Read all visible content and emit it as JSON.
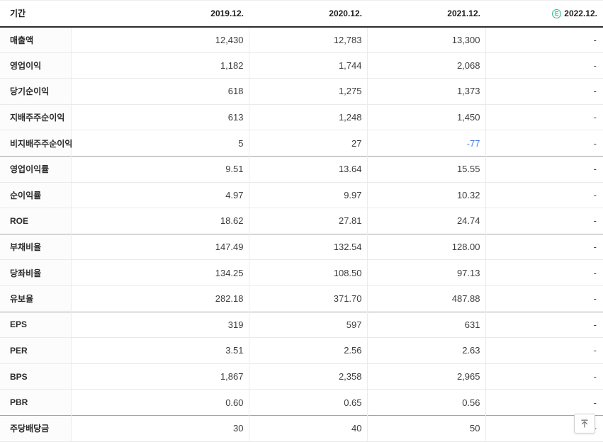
{
  "table": {
    "period_label": "기간",
    "columns": [
      "2019.12.",
      "2020.12.",
      "2021.12.",
      "2022.12."
    ],
    "estimate_badge": "E",
    "rows": [
      {
        "label": "매출액",
        "values": [
          "12,430",
          "12,783",
          "13,300",
          "-"
        ]
      },
      {
        "label": "영업이익",
        "values": [
          "1,182",
          "1,744",
          "2,068",
          "-"
        ]
      },
      {
        "label": "당기순이익",
        "values": [
          "618",
          "1,275",
          "1,373",
          "-"
        ]
      },
      {
        "label": "지배주주순이익",
        "values": [
          "613",
          "1,248",
          "1,450",
          "-"
        ]
      },
      {
        "label": "비지배주주순이익",
        "values": [
          "5",
          "27",
          "-77",
          "-"
        ]
      },
      {
        "label": "영업이익률",
        "values": [
          "9.51",
          "13.64",
          "15.55",
          "-"
        ]
      },
      {
        "label": "순이익률",
        "values": [
          "4.97",
          "9.97",
          "10.32",
          "-"
        ]
      },
      {
        "label": "ROE",
        "values": [
          "18.62",
          "27.81",
          "24.74",
          "-"
        ]
      },
      {
        "label": "부채비율",
        "values": [
          "147.49",
          "132.54",
          "128.00",
          "-"
        ]
      },
      {
        "label": "당좌비율",
        "values": [
          "134.25",
          "108.50",
          "97.13",
          "-"
        ]
      },
      {
        "label": "유보율",
        "values": [
          "282.18",
          "371.70",
          "487.88",
          "-"
        ]
      },
      {
        "label": "EPS",
        "values": [
          "319",
          "597",
          "631",
          "-"
        ]
      },
      {
        "label": "PER",
        "values": [
          "3.51",
          "2.56",
          "2.63",
          "-"
        ]
      },
      {
        "label": "BPS",
        "values": [
          "1,867",
          "2,358",
          "2,965",
          "-"
        ]
      },
      {
        "label": "PBR",
        "values": [
          "0.60",
          "0.65",
          "0.56",
          "-"
        ]
      },
      {
        "label": "주당배당금",
        "values": [
          "30",
          "40",
          "50",
          "-"
        ]
      }
    ],
    "group_end_row_indexes": [
      4,
      7,
      10,
      14
    ],
    "colors": {
      "negative_value": "#4a7ede",
      "estimate_green": "#35b888",
      "header_rule": "#2b2b2b"
    }
  },
  "scroll_top_button": {
    "icon": "arrow-up-to-top-icon"
  }
}
